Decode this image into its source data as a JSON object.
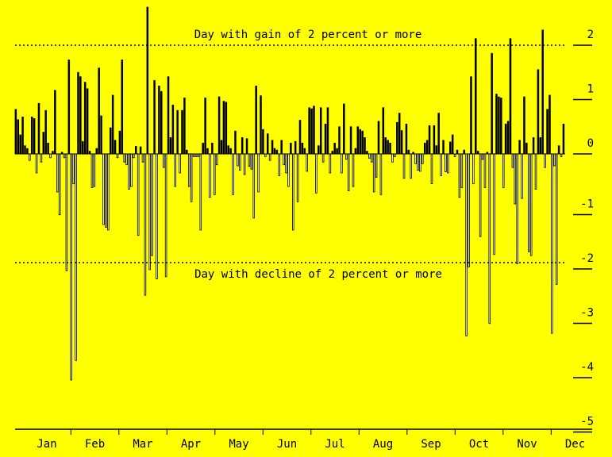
{
  "chart_data": {
    "type": "bar",
    "x_unit": "trading day",
    "y_unit": "percent",
    "ylim": [
      -5,
      2.3
    ],
    "yticks": [
      "2",
      "1",
      "0",
      "-1",
      "-2",
      "-3",
      "-4",
      "-5"
    ],
    "ytick_values": [
      2,
      1,
      0,
      -1,
      -2,
      -3,
      -4,
      -5
    ],
    "months": [
      "Jan",
      "Feb",
      "Mar",
      "Apr",
      "May",
      "Jun",
      "Jul",
      "Aug",
      "Sep",
      "Oct",
      "Nov",
      "Dec"
    ],
    "grid": false,
    "colors": {
      "background": "#ffff00",
      "gain": "#000000",
      "decline": "#ffffff",
      "stroke": "#000000"
    },
    "annotations": {
      "gain_line": {
        "y": 2,
        "label": "Day with gain of 2 percent or more"
      },
      "decline_line": {
        "y": -2,
        "label": "Day with decline of 2 percent or more"
      }
    },
    "series": [
      {
        "values": [
          0.82,
          0.63,
          0.35,
          0.68,
          0.15,
          0.1,
          -0.12,
          0.68,
          0.65,
          -0.35,
          0.93,
          -0.15,
          0.4,
          0.8,
          0.2,
          -0.07,
          0.05,
          1.17,
          -0.7,
          -1.12,
          0.03,
          -0.07,
          -2.15,
          1.73,
          -4.16,
          -0.55,
          -3.8,
          1.5,
          1.42,
          0.23,
          1.32,
          1.2,
          0.05,
          -0.62,
          -0.6,
          0.1,
          1.58,
          0.7,
          -1.3,
          -1.35,
          -1.4,
          0.48,
          1.08,
          0.25,
          -0.07,
          0.42,
          1.73,
          -0.15,
          -0.2,
          -0.65,
          -0.6,
          -0.07,
          0.14,
          -1.5,
          0.13,
          -0.15,
          -2.6,
          2.7,
          -2.13,
          -1.87,
          1.35,
          -2.3,
          1.25,
          1.15,
          -0.25,
          -2.26,
          1.42,
          0.3,
          0.9,
          -0.6,
          0.8,
          -0.35,
          0.8,
          1.03,
          0.07,
          -0.6,
          -0.88,
          -0.05,
          -0.05,
          -0.05,
          -1.4,
          0.2,
          1.03,
          0.1,
          -0.8,
          0.2,
          -0.75,
          -0.2,
          1.05,
          0.25,
          0.97,
          0.95,
          0.15,
          0.1,
          -0.75,
          0.42,
          -0.22,
          -0.3,
          0.3,
          -0.38,
          0.28,
          -0.23,
          -0.28,
          -1.18,
          1.25,
          -0.7,
          1.07,
          0.45,
          -0.05,
          0.37,
          -0.12,
          0.25,
          0.1,
          0.07,
          -0.4,
          0.25,
          -0.2,
          -0.35,
          -0.6,
          0.2,
          -1.4,
          0.23,
          -0.88,
          0.62,
          0.2,
          0.1,
          -0.32,
          0.85,
          0.83,
          0.88,
          -0.72,
          0.15,
          0.85,
          -0.15,
          0.55,
          0.85,
          -0.35,
          0.05,
          0.2,
          0.1,
          0.5,
          -0.35,
          0.92,
          -0.1,
          -0.68,
          0.5,
          -0.6,
          0.1,
          0.5,
          0.45,
          0.42,
          0.3,
          0.05,
          -0.08,
          -0.15,
          -0.7,
          -0.43,
          0.6,
          -0.75,
          0.85,
          0.3,
          0.25,
          0.2,
          -0.15,
          -0.05,
          0.58,
          0.75,
          0.43,
          -0.45,
          0.55,
          0.07,
          -0.45,
          0.03,
          -0.18,
          -0.3,
          -0.32,
          -0.18,
          0.2,
          0.25,
          0.52,
          -0.55,
          0.52,
          0.15,
          0.75,
          -0.4,
          0.25,
          -0.33,
          -0.35,
          0.22,
          0.35,
          -0.05,
          0.07,
          -0.8,
          -0.62,
          0.07,
          -3.35,
          -2.08,
          1.42,
          -0.55,
          2.12,
          0.05,
          -1.52,
          -0.1,
          -0.62,
          0.03,
          -3.12,
          1.85,
          -1.85,
          1.1,
          1.05,
          1.03,
          -0.62,
          0.55,
          0.6,
          2.12,
          -0.25,
          -0.92,
          -2.02,
          0.25,
          -0.82,
          1.05,
          0.2,
          -1.8,
          -1.87,
          0.3,
          -0.65,
          1.55,
          0.3,
          2.28,
          -0.25,
          0.82,
          1.08,
          -3.3,
          -0.22,
          -2.4,
          0.15,
          -0.05,
          0.55
        ]
      }
    ]
  }
}
